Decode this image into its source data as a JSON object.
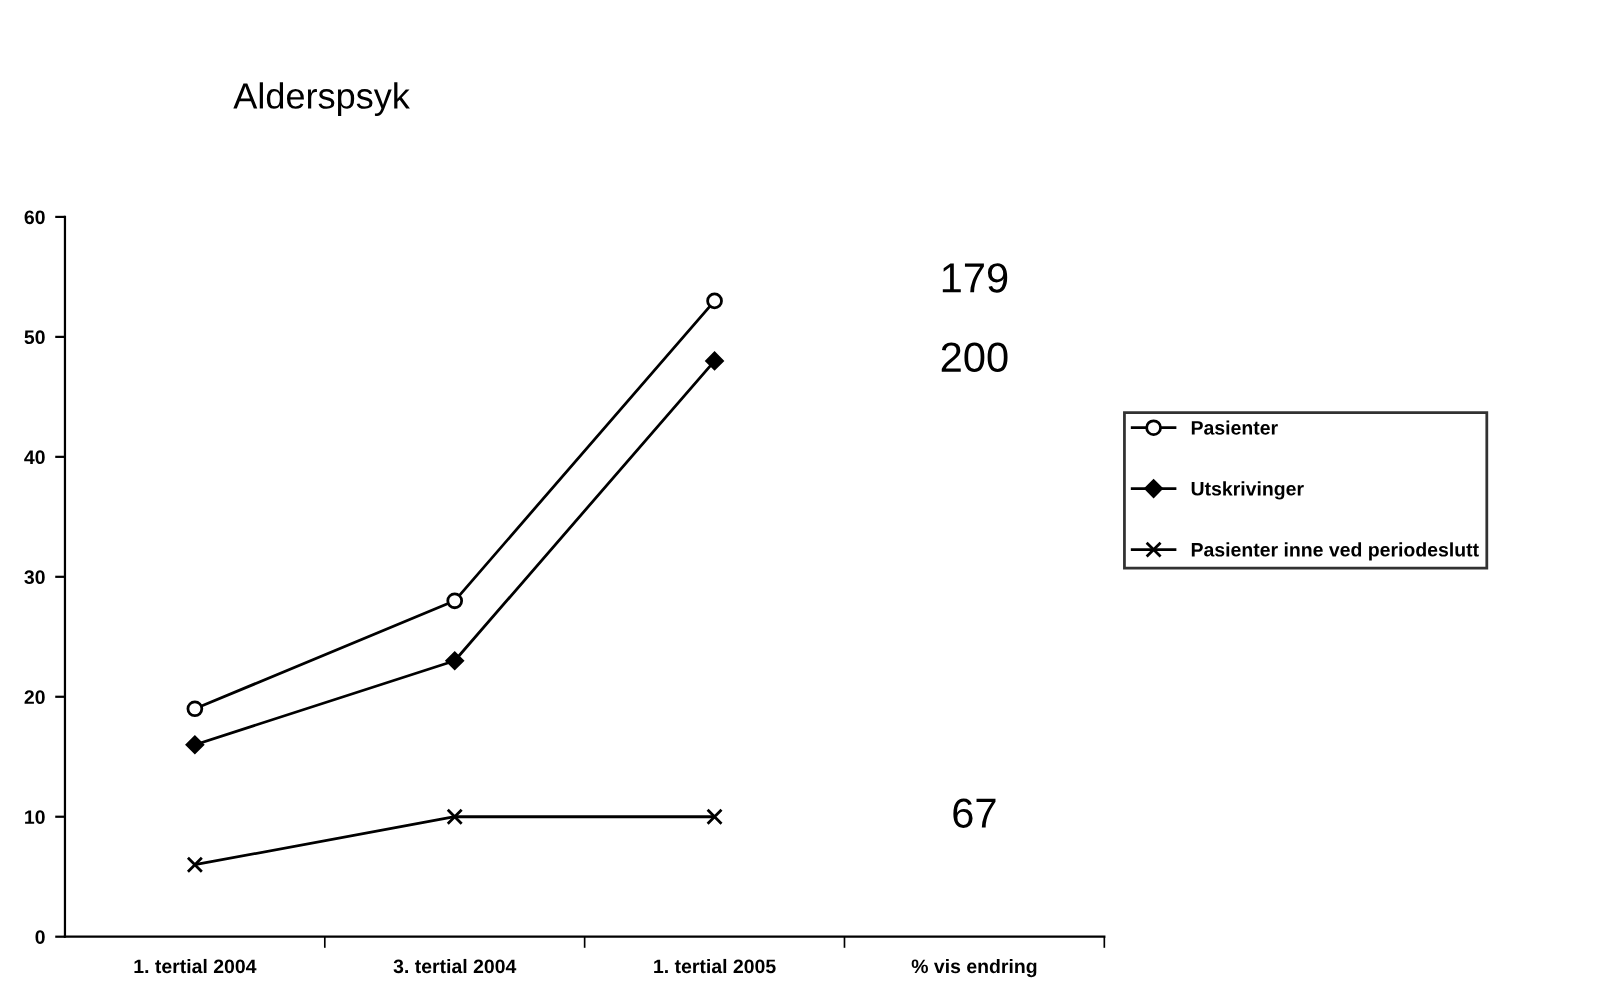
{
  "chart_data": {
    "type": "line",
    "title": "Alderspsyk",
    "categories": [
      "1. tertial 2004",
      "3. tertial 2004",
      "1. tertial 2005",
      "% vis endring"
    ],
    "series": [
      {
        "name": "Pasienter",
        "color": "#000000",
        "marker": "circle",
        "values": [
          19,
          28,
          53,
          null
        ]
      },
      {
        "name": "Utskrivinger",
        "color": "#000000",
        "marker": "diamond",
        "values": [
          16,
          23,
          48,
          null
        ]
      },
      {
        "name": "Pasienter inne ved periodeslutt",
        "color": "#000000",
        "marker": "cross",
        "values": [
          6,
          10,
          10,
          null
        ]
      }
    ],
    "annotations": [
      "179",
      "200",
      "67"
    ],
    "ylim": [
      0,
      60
    ],
    "yticks": [
      0,
      10,
      20,
      30,
      40,
      50,
      60
    ],
    "grid": false,
    "legend": "right",
    "line_style": "solid"
  }
}
